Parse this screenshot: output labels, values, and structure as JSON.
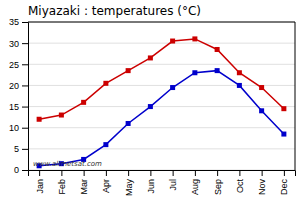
{
  "chart_data": {
    "type": "line",
    "title": "Miyazaki : temperatures (°C)",
    "categories": [
      "Jan",
      "Feb",
      "Mar",
      "Apr",
      "May",
      "Jun",
      "Jul",
      "Aug",
      "Sep",
      "Oct",
      "Nov",
      "Dec"
    ],
    "series": [
      {
        "color": "#cc0000",
        "marker": "square",
        "values": [
          12,
          13,
          16,
          20.5,
          23.5,
          26.5,
          30.5,
          31,
          28.5,
          23,
          19.5,
          14.5
        ]
      },
      {
        "color": "#0000cc",
        "marker": "square",
        "values": [
          1,
          1.5,
          2.5,
          6,
          11,
          15,
          19.5,
          23,
          23.5,
          20,
          14,
          8.5
        ]
      }
    ],
    "ylim": [
      0,
      35
    ],
    "yticks": [
      0,
      5,
      10,
      15,
      20,
      25,
      30,
      35
    ],
    "grid": true,
    "annotations": [
      "www.allmetsat.com"
    ]
  }
}
